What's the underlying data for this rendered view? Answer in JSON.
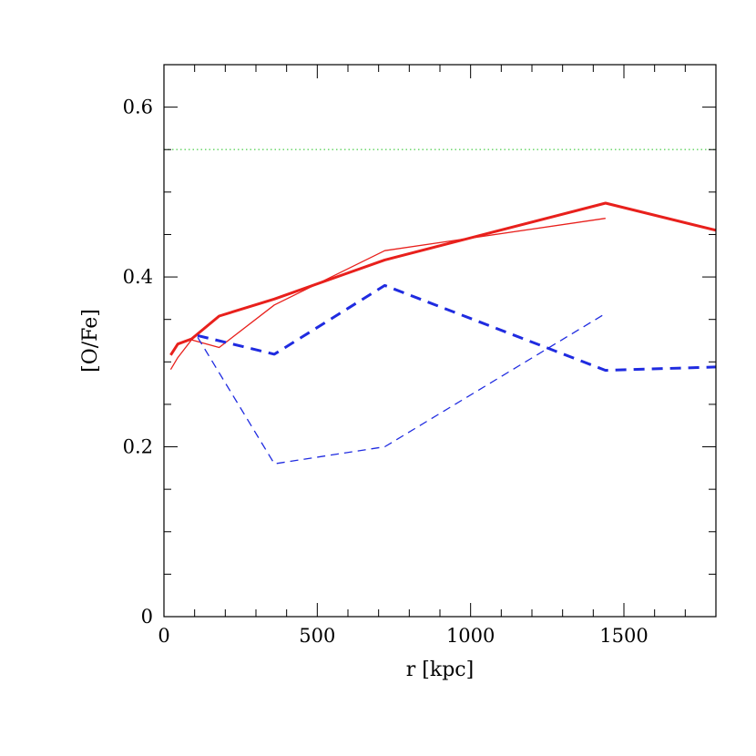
{
  "chart_data": {
    "type": "line",
    "xlabel": "r [kpc]",
    "ylabel": "[O/Fe]",
    "xlim": [
      0,
      1800
    ],
    "ylim": [
      0,
      0.65
    ],
    "x_ticks": [
      0,
      500,
      1000,
      1500
    ],
    "x_tick_labels": [
      "0",
      "500",
      "1000",
      "1500"
    ],
    "y_ticks": [
      0,
      0.2,
      0.4,
      0.6
    ],
    "y_tick_labels": [
      "0",
      "0.2",
      "0.4",
      "0.6"
    ],
    "x_minor_step": 100,
    "y_minor_step": 0.05,
    "grid": false,
    "legend": "none",
    "series": [
      {
        "color": "#e8201c",
        "style": "solid",
        "weight": "thick",
        "x": [
          22,
          45,
          90,
          180,
          360,
          720,
          1440,
          1800
        ],
        "y": [
          0.308,
          0.321,
          0.327,
          0.354,
          0.374,
          0.42,
          0.487,
          0.455
        ]
      },
      {
        "color": "#e8201c",
        "style": "solid",
        "weight": "thin",
        "x": [
          22,
          45,
          90,
          180,
          360,
          720,
          1440
        ],
        "y": [
          0.291,
          0.305,
          0.326,
          0.317,
          0.367,
          0.431,
          0.469
        ]
      },
      {
        "color": "#1f2be0",
        "style": "dashed",
        "weight": "thick",
        "x": [
          110,
          360,
          720,
          1440,
          1800
        ],
        "y": [
          0.331,
          0.309,
          0.39,
          0.29,
          0.294
        ]
      },
      {
        "color": "#1f2be0",
        "style": "dashed",
        "weight": "thin",
        "x": [
          110,
          360,
          720,
          1440
        ],
        "y": [
          0.329,
          0.18,
          0.2,
          0.357
        ]
      },
      {
        "color": "#5fd35f",
        "style": "dotted",
        "weight": "thin",
        "x": [
          0,
          1800
        ],
        "y": [
          0.55,
          0.55
        ]
      }
    ]
  }
}
